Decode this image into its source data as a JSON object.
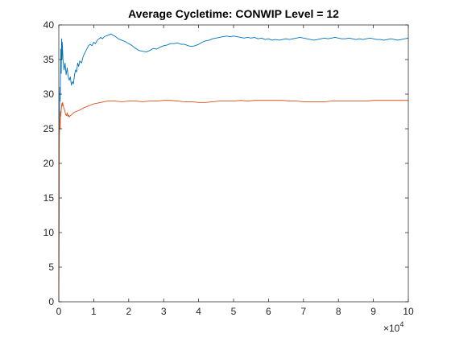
{
  "chart_data": {
    "type": "line",
    "title": "Average Cycletime: CONWIP Level = 12",
    "xlabel": "",
    "ylabel": "",
    "xlim": [
      0,
      100000
    ],
    "ylim": [
      0,
      40
    ],
    "x_ticks": [
      0,
      10000,
      20000,
      30000,
      40000,
      50000,
      60000,
      70000,
      80000,
      90000,
      100000
    ],
    "x_tick_labels": [
      "0",
      "1",
      "2",
      "3",
      "4",
      "5",
      "6",
      "7",
      "8",
      "9",
      "10"
    ],
    "x_exponent_label": {
      "base": "×10",
      "exp": "4"
    },
    "y_ticks": [
      0,
      5,
      10,
      15,
      20,
      25,
      30,
      35,
      40
    ],
    "y_tick_labels": [
      "0",
      "5",
      "10",
      "15",
      "20",
      "25",
      "30",
      "35",
      "40"
    ],
    "grid": false,
    "series": [
      {
        "color": "#0072BD",
        "points": [
          [
            0,
            0
          ],
          [
            150,
            25
          ],
          [
            300,
            31
          ],
          [
            400,
            29
          ],
          [
            500,
            33
          ],
          [
            600,
            36.5
          ],
          [
            700,
            33
          ],
          [
            800,
            38
          ],
          [
            900,
            35
          ],
          [
            1000,
            37.5
          ],
          [
            1200,
            35
          ],
          [
            1500,
            33.5
          ],
          [
            1800,
            34.5
          ],
          [
            2100,
            32.8
          ],
          [
            2400,
            33.8
          ],
          [
            2700,
            32.5
          ],
          [
            3000,
            32
          ],
          [
            3300,
            32.5
          ],
          [
            3600,
            31.3
          ],
          [
            3900,
            31.8
          ],
          [
            4200,
            31.5
          ],
          [
            4500,
            32.8
          ],
          [
            4800,
            33.5
          ],
          [
            5100,
            33.2
          ],
          [
            5400,
            34.5
          ],
          [
            5700,
            34
          ],
          [
            6000,
            34.8
          ],
          [
            6500,
            34.5
          ],
          [
            7000,
            35.5
          ],
          [
            7500,
            36
          ],
          [
            8000,
            36.5
          ],
          [
            8500,
            37
          ],
          [
            9000,
            37.2
          ],
          [
            9500,
            37
          ],
          [
            10000,
            37.5
          ],
          [
            10500,
            37.3
          ],
          [
            11000,
            37.8
          ],
          [
            11500,
            38
          ],
          [
            12000,
            38.2
          ],
          [
            12500,
            38
          ],
          [
            13000,
            38.3
          ],
          [
            13500,
            38.4
          ],
          [
            14000,
            38.5
          ],
          [
            14500,
            38.6
          ],
          [
            15000,
            38.7
          ],
          [
            15500,
            38.5
          ],
          [
            16000,
            38.4
          ],
          [
            17000,
            38
          ],
          [
            18000,
            37.8
          ],
          [
            19000,
            37.6
          ],
          [
            20000,
            37.3
          ],
          [
            21000,
            37
          ],
          [
            22000,
            36.6
          ],
          [
            23000,
            36.3
          ],
          [
            24000,
            36.2
          ],
          [
            25000,
            36.1
          ],
          [
            26000,
            36.3
          ],
          [
            27000,
            36.6
          ],
          [
            28000,
            36.5
          ],
          [
            29000,
            36.8
          ],
          [
            30000,
            37
          ],
          [
            31000,
            37.1
          ],
          [
            32000,
            37.3
          ],
          [
            33000,
            37.3
          ],
          [
            34000,
            37.4
          ],
          [
            35000,
            37.2
          ],
          [
            36000,
            37.2
          ],
          [
            37000,
            37
          ],
          [
            38000,
            36.9
          ],
          [
            39000,
            37
          ],
          [
            40000,
            37.2
          ],
          [
            41000,
            37.5
          ],
          [
            42000,
            37.7
          ],
          [
            43000,
            37.8
          ],
          [
            44000,
            38
          ],
          [
            45000,
            38.1
          ],
          [
            46000,
            38.2
          ],
          [
            47000,
            38.3
          ],
          [
            48000,
            38.4
          ],
          [
            49000,
            38.3
          ],
          [
            50000,
            38.4
          ],
          [
            51000,
            38.3
          ],
          [
            52000,
            38.2
          ],
          [
            53000,
            38.1
          ],
          [
            54000,
            38.2
          ],
          [
            55000,
            38.1
          ],
          [
            56000,
            38.2
          ],
          [
            57000,
            38
          ],
          [
            58000,
            38.1
          ],
          [
            59000,
            37.9
          ],
          [
            60000,
            38
          ],
          [
            61000,
            37.8
          ],
          [
            62000,
            37.9
          ],
          [
            63000,
            37.8
          ],
          [
            64000,
            37.9
          ],
          [
            65000,
            38
          ],
          [
            66000,
            37.9
          ],
          [
            67000,
            38
          ],
          [
            68000,
            38.1
          ],
          [
            69000,
            38.2
          ],
          [
            70000,
            38.1
          ],
          [
            71000,
            38
          ],
          [
            72000,
            37.9
          ],
          [
            73000,
            37.8
          ],
          [
            74000,
            37.9
          ],
          [
            75000,
            38
          ],
          [
            76000,
            38.1
          ],
          [
            77000,
            38
          ],
          [
            78000,
            38.1
          ],
          [
            79000,
            38.2
          ],
          [
            80000,
            38.1
          ],
          [
            81000,
            38
          ],
          [
            82000,
            38
          ],
          [
            83000,
            38.1
          ],
          [
            84000,
            38
          ],
          [
            85000,
            37.9
          ],
          [
            86000,
            38
          ],
          [
            87000,
            37.9
          ],
          [
            88000,
            38
          ],
          [
            89000,
            38.1
          ],
          [
            90000,
            38
          ],
          [
            91000,
            37.9
          ],
          [
            92000,
            37.9
          ],
          [
            93000,
            37.8
          ],
          [
            94000,
            37.9
          ],
          [
            95000,
            38
          ],
          [
            96000,
            37.9
          ],
          [
            97000,
            37.8
          ],
          [
            98000,
            37.9
          ],
          [
            99000,
            38
          ],
          [
            100000,
            38.1
          ]
        ]
      },
      {
        "color": "#D95319",
        "points": [
          [
            0,
            0
          ],
          [
            150,
            24
          ],
          [
            300,
            26.5
          ],
          [
            400,
            25
          ],
          [
            500,
            27.5
          ],
          [
            600,
            26.8
          ],
          [
            700,
            27.8
          ],
          [
            800,
            28.3
          ],
          [
            900,
            28.7
          ],
          [
            1000,
            28.3
          ],
          [
            1100,
            28.8
          ],
          [
            1200,
            28.5
          ],
          [
            1400,
            28.1
          ],
          [
            1600,
            27.8
          ],
          [
            1800,
            27.4
          ],
          [
            2000,
            27
          ],
          [
            2200,
            26.9
          ],
          [
            2400,
            27.3
          ],
          [
            2600,
            26.8
          ],
          [
            2800,
            27
          ],
          [
            3000,
            26.7
          ],
          [
            3300,
            26.9
          ],
          [
            3600,
            27
          ],
          [
            4000,
            27.2
          ],
          [
            4500,
            27.4
          ],
          [
            5000,
            27.5
          ],
          [
            5500,
            27.6
          ],
          [
            6000,
            27.7
          ],
          [
            7000,
            28
          ],
          [
            8000,
            28.2
          ],
          [
            9000,
            28.4
          ],
          [
            10000,
            28.6
          ],
          [
            11000,
            28.7
          ],
          [
            12000,
            28.8
          ],
          [
            13000,
            28.9
          ],
          [
            14000,
            29
          ],
          [
            15000,
            29
          ],
          [
            16000,
            29
          ],
          [
            18000,
            28.9
          ],
          [
            20000,
            29
          ],
          [
            22000,
            29
          ],
          [
            24000,
            28.9
          ],
          [
            26000,
            29
          ],
          [
            28000,
            29
          ],
          [
            30000,
            29.1
          ],
          [
            32000,
            29.1
          ],
          [
            34000,
            29
          ],
          [
            36000,
            28.9
          ],
          [
            38000,
            28.9
          ],
          [
            40000,
            28.8
          ],
          [
            42000,
            28.8
          ],
          [
            44000,
            28.9
          ],
          [
            46000,
            29
          ],
          [
            48000,
            29
          ],
          [
            50000,
            29
          ],
          [
            52000,
            29.1
          ],
          [
            54000,
            29
          ],
          [
            56000,
            29.1
          ],
          [
            58000,
            29.1
          ],
          [
            60000,
            29.1
          ],
          [
            62000,
            29.1
          ],
          [
            64000,
            29.1
          ],
          [
            66000,
            29
          ],
          [
            68000,
            29
          ],
          [
            70000,
            28.9
          ],
          [
            72000,
            28.9
          ],
          [
            74000,
            28.9
          ],
          [
            76000,
            28.9
          ],
          [
            78000,
            29
          ],
          [
            80000,
            29
          ],
          [
            82000,
            29
          ],
          [
            84000,
            29
          ],
          [
            86000,
            29
          ],
          [
            88000,
            29
          ],
          [
            90000,
            29.1
          ],
          [
            92000,
            29.1
          ],
          [
            94000,
            29.1
          ],
          [
            96000,
            29.1
          ],
          [
            98000,
            29.1
          ],
          [
            100000,
            29.1
          ]
        ]
      }
    ]
  }
}
